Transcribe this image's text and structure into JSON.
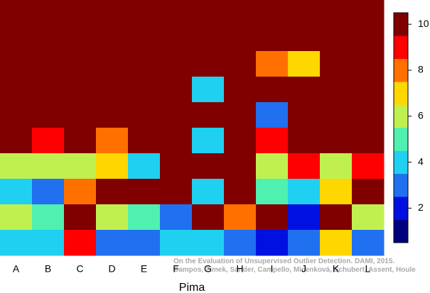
{
  "chart_data": {
    "type": "heatmap",
    "xlabel": "Pima",
    "categories": [
      "A",
      "B",
      "C",
      "D",
      "E",
      "F",
      "G",
      "H",
      "I",
      "J",
      "K",
      "L"
    ],
    "z": [
      [
        10,
        10,
        10,
        10,
        10,
        10,
        10,
        10,
        10,
        10,
        10,
        10
      ],
      [
        10,
        10,
        10,
        10,
        10,
        10,
        10,
        10,
        10,
        10,
        10,
        10
      ],
      [
        10,
        10,
        10,
        10,
        10,
        10,
        10,
        10,
        8,
        7,
        10,
        10
      ],
      [
        10,
        10,
        10,
        10,
        10,
        10,
        4,
        10,
        10,
        10,
        10,
        10
      ],
      [
        10,
        10,
        10,
        10,
        10,
        10,
        10,
        10,
        3,
        10,
        10,
        10
      ],
      [
        10,
        9,
        10,
        8,
        10,
        10,
        4,
        10,
        9,
        10,
        10,
        10
      ],
      [
        6,
        6,
        6,
        7,
        4,
        10,
        10,
        10,
        6,
        9,
        6,
        9
      ],
      [
        4,
        3,
        8,
        10,
        10,
        10,
        4,
        10,
        5,
        4,
        7,
        10
      ],
      [
        6,
        5,
        10,
        6,
        5,
        3,
        10,
        8,
        10,
        2,
        10,
        6
      ],
      [
        4,
        4,
        9,
        3,
        3,
        4,
        4,
        3,
        2,
        3,
        7,
        3
      ]
    ],
    "colors": [
      "#00007f",
      "#0010e0",
      "#2070f0",
      "#20d0f0",
      "#50f0b0",
      "#c0f050",
      "#ffd700",
      "#ff7000",
      "#ff0000",
      "#800000"
    ],
    "zlim": [
      0.5,
      10.5
    ],
    "zticks": [
      2,
      4,
      6,
      8,
      10
    ],
    "annotations": [
      "On the Evaluation of Unsupervised Outlier Detection. DAMI, 2015.",
      "Campos, Zimek, Sander, Campello, Micenková, Schubert, Assent, Houle"
    ]
  }
}
